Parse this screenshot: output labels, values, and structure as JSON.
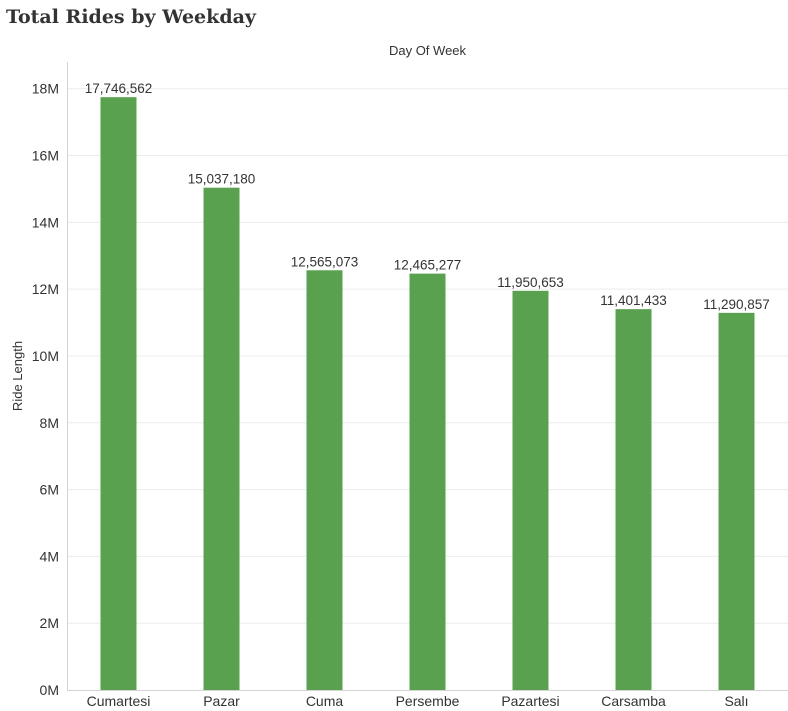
{
  "chart_data": {
    "type": "bar",
    "title": "Total Rides by Weekday",
    "xlabel": "Day Of Week",
    "ylabel": "Ride Length",
    "categories": [
      "Cumartesi",
      "Pazar",
      "Cuma",
      "Persembe",
      "Pazartesi",
      "Carsamba",
      "Salı"
    ],
    "values": [
      17746562,
      15037180,
      12565073,
      12465277,
      11950653,
      11401433,
      11290857
    ],
    "value_labels": [
      "17,746,562",
      "15,037,180",
      "12,565,073",
      "12,465,277",
      "11,950,653",
      "11,401,433",
      "11,290,857"
    ],
    "yticks": [
      0,
      2000000,
      4000000,
      6000000,
      8000000,
      10000000,
      12000000,
      14000000,
      16000000,
      18000000
    ],
    "ytick_labels": [
      "0M",
      "2M",
      "4M",
      "6M",
      "8M",
      "10M",
      "12M",
      "14M",
      "16M",
      "18M"
    ],
    "ylim": [
      0,
      18800000
    ],
    "grid": true,
    "bar_color": "#59a14f",
    "grid_color": "#ececec"
  }
}
